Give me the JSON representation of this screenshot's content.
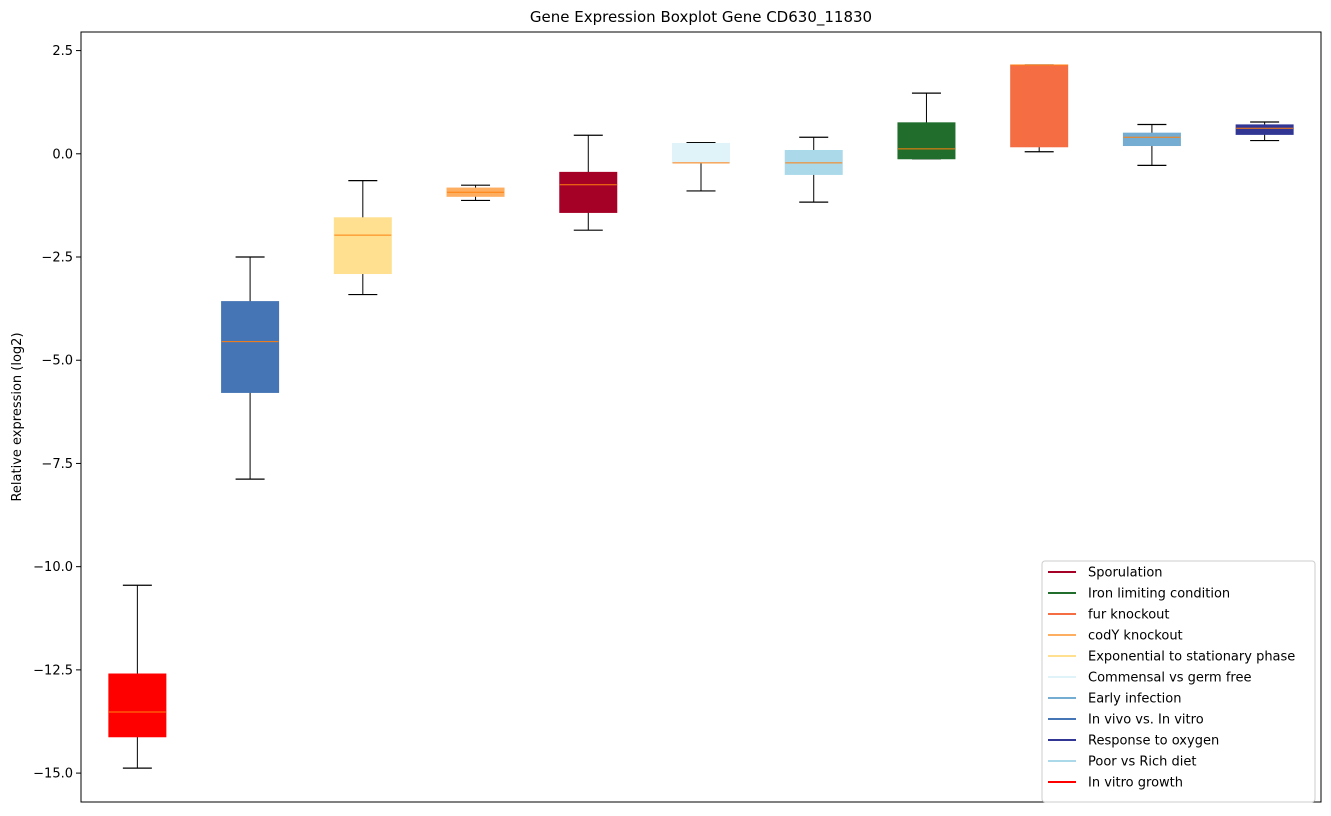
{
  "chart_data": {
    "type": "boxplot",
    "title": "Gene Expression Boxplot Gene CD630_11830",
    "ylabel": "Relative expression (log2)",
    "xlabel": "",
    "ylim": [
      -15.7,
      2.95
    ],
    "yticks": [
      2.5,
      0.0,
      -2.5,
      -5.0,
      -7.5,
      -10.0,
      -12.5,
      -15.0
    ],
    "ytick_labels": [
      "2.5",
      "0.0",
      "−2.5",
      "−5.0",
      "−7.5",
      "−10.0",
      "−12.5",
      "−15.0"
    ],
    "grid": false,
    "legend_position": "bottom-right",
    "median_color": "#ff7f0e",
    "boxes": [
      {
        "name": "In vitro growth",
        "color": "#ff0000",
        "whisker_low": -14.88,
        "q1": -14.12,
        "median": -13.52,
        "q3": -12.6,
        "whisker_high": -10.45
      },
      {
        "name": "In vivo vs. In vitro",
        "color": "#4575b4",
        "whisker_low": -7.88,
        "q1": -5.78,
        "median": -4.55,
        "q3": -3.58,
        "whisker_high": -2.5
      },
      {
        "name": "Exponential to stationary phase",
        "color": "#fee090",
        "whisker_low": -3.41,
        "q1": -2.9,
        "median": -1.97,
        "q3": -1.55,
        "whisker_high": -0.65
      },
      {
        "name": "codY knockout",
        "color": "#fdae61",
        "whisker_low": -1.13,
        "q1": -1.03,
        "median": -0.93,
        "q3": -0.83,
        "whisker_high": -0.76
      },
      {
        "name": "Sporulation",
        "color": "#a50026",
        "whisker_low": -1.85,
        "q1": -1.42,
        "median": -0.75,
        "q3": -0.45,
        "whisker_high": 0.45
      },
      {
        "name": "Commensal vs germ free",
        "color": "#e0f3f8",
        "whisker_low": -0.9,
        "q1": -0.22,
        "median": -0.22,
        "q3": 0.25,
        "whisker_high": 0.27
      },
      {
        "name": "Poor vs Rich diet",
        "color": "#abd9e9",
        "whisker_low": -1.17,
        "q1": -0.5,
        "median": -0.22,
        "q3": 0.08,
        "whisker_high": 0.4
      },
      {
        "name": "Iron limiting condition",
        "color": "#216e2c",
        "whisker_low": -0.12,
        "q1": -0.12,
        "median": 0.12,
        "q3": 0.75,
        "whisker_high": 1.47
      },
      {
        "name": "fur knockout",
        "color": "#f46d43",
        "whisker_low": 0.05,
        "q1": 0.17,
        "median": 2.15,
        "q3": 2.15,
        "whisker_high": 2.15
      },
      {
        "name": "Early infection",
        "color": "#74add1",
        "whisker_low": -0.28,
        "q1": 0.2,
        "median": 0.4,
        "q3": 0.5,
        "whisker_high": 0.71
      },
      {
        "name": "Response to oxygen",
        "color": "#313695",
        "whisker_low": 0.32,
        "q1": 0.47,
        "median": 0.62,
        "q3": 0.7,
        "whisker_high": 0.77
      }
    ],
    "legend": [
      {
        "label": "Sporulation",
        "color": "#a50026"
      },
      {
        "label": "Iron limiting condition",
        "color": "#216e2c"
      },
      {
        "label": "fur knockout",
        "color": "#f46d43"
      },
      {
        "label": "codY knockout",
        "color": "#fdae61"
      },
      {
        "label": "Exponential to stationary phase",
        "color": "#fee090"
      },
      {
        "label": "Commensal vs germ free",
        "color": "#e0f3f8"
      },
      {
        "label": "Early infection",
        "color": "#74add1"
      },
      {
        "label": "In vivo vs. In vitro",
        "color": "#4575b4"
      },
      {
        "label": "Response to oxygen",
        "color": "#313695"
      },
      {
        "label": "Poor vs Rich diet",
        "color": "#abd9e9"
      },
      {
        "label": "In vitro growth",
        "color": "#ff0000"
      }
    ]
  }
}
